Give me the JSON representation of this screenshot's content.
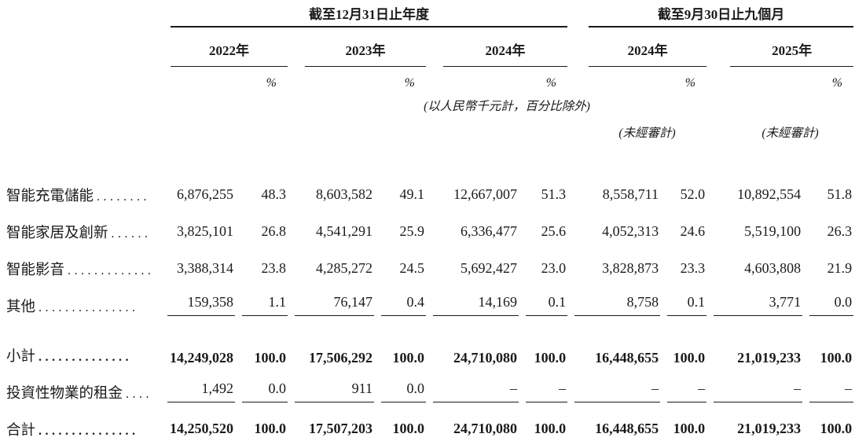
{
  "table": {
    "percent": "%",
    "header": {
      "period_annual": "截至12月31日止年度",
      "period_interim": "截至9月30日止九個月",
      "years": [
        "2022年",
        "2023年",
        "2024年",
        "2024年",
        "2025年"
      ],
      "note": "(以人民幣千元計，百分比除外)",
      "unaudited": "(未經審計)"
    },
    "rows": [
      {
        "label": "智能充電儲能",
        "leader": "........",
        "bold": false,
        "rule_below": false,
        "extra_space": false,
        "values": [
          "6,876,255",
          "48.3",
          "8,603,582",
          "49.1",
          "12,667,007",
          "51.3",
          "8,558,711",
          "52.0",
          "10,892,554",
          "51.8"
        ]
      },
      {
        "label": "智能家居及創新",
        "leader": "......",
        "bold": false,
        "rule_below": false,
        "extra_space": false,
        "values": [
          "3,825,101",
          "26.8",
          "4,541,291",
          "25.9",
          "6,336,477",
          "25.6",
          "4,052,313",
          "24.6",
          "5,519,100",
          "26.3"
        ]
      },
      {
        "label": "智能影音",
        "leader": ".............",
        "bold": false,
        "rule_below": false,
        "extra_space": false,
        "values": [
          "3,388,314",
          "23.8",
          "4,285,272",
          "24.5",
          "5,692,427",
          "23.0",
          "3,828,873",
          "23.3",
          "4,603,808",
          "21.9"
        ]
      },
      {
        "label": "其他",
        "leader": "...............",
        "bold": false,
        "rule_below": true,
        "extra_space": false,
        "values": [
          "159,358",
          "1.1",
          "76,147",
          "0.4",
          "14,169",
          "0.1",
          "8,758",
          "0.1",
          "3,771",
          "0.0"
        ]
      },
      {
        "label": "小計",
        "leader": "..............",
        "bold": true,
        "rule_below": false,
        "extra_space": true,
        "values": [
          "14,249,028",
          "100.0",
          "17,506,292",
          "100.0",
          "24,710,080",
          "100.0",
          "16,448,655",
          "100.0",
          "21,019,233",
          "100.0"
        ]
      },
      {
        "label": "投資性物業的租金",
        "leader": "....",
        "bold": false,
        "rule_below": true,
        "extra_space": false,
        "values": [
          "1,492",
          "0.0",
          "911",
          "0.0",
          "–",
          "–",
          "–",
          "–",
          "–",
          "–"
        ]
      },
      {
        "label": "合計",
        "leader": "...............",
        "bold": true,
        "rule_below": false,
        "extra_space": false,
        "values": [
          "14,250,520",
          "100.0",
          "17,507,203",
          "100.0",
          "24,710,080",
          "100.0",
          "16,448,655",
          "100.0",
          "21,019,233",
          "100.0"
        ]
      }
    ]
  }
}
